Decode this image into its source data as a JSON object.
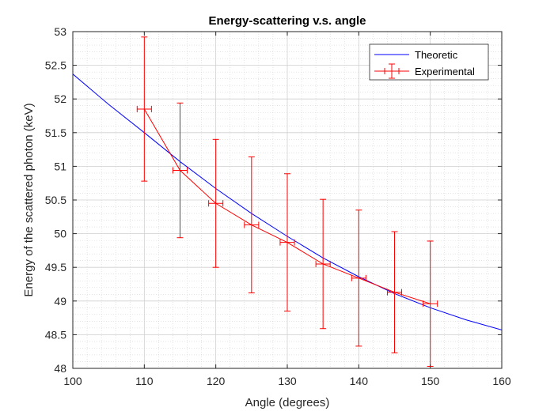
{
  "chart_data": {
    "type": "line",
    "title": "Energy-scattering v.s. angle",
    "xlabel": "Angle (degrees)",
    "ylabel": "Energy of the scattered photon (keV)",
    "xlim": [
      100,
      160
    ],
    "ylim": [
      48,
      53
    ],
    "xticks": [
      "100",
      "110",
      "120",
      "130",
      "140",
      "150",
      "160"
    ],
    "yticks": [
      "48",
      "48.5",
      "49",
      "49.5",
      "50",
      "50.5",
      "51",
      "51.5",
      "52",
      "52.5",
      "53"
    ],
    "grid": true,
    "minor_grid": true,
    "legend_position": "top-right",
    "series": [
      {
        "name": "Theoretic",
        "color": "#0000ff",
        "x": [
          100,
          105,
          110,
          115,
          120,
          125,
          130,
          135,
          140,
          145,
          150,
          155,
          160
        ],
        "y": [
          52.37,
          51.92,
          51.5,
          51.07,
          50.67,
          50.3,
          49.96,
          49.64,
          49.36,
          49.11,
          48.9,
          48.72,
          48.57
        ]
      },
      {
        "name": "Experimental",
        "color": "#ff0000",
        "x": [
          110,
          115,
          120,
          125,
          130,
          135,
          140,
          145,
          150
        ],
        "y": [
          51.85,
          50.94,
          50.45,
          50.13,
          49.87,
          49.55,
          49.34,
          49.13,
          48.96
        ],
        "yerr": [
          1.07,
          1.0,
          0.95,
          1.01,
          1.02,
          0.96,
          1.01,
          0.9,
          0.93
        ],
        "xerr": [
          1.0,
          1.0,
          1.0,
          1.0,
          1.0,
          1.0,
          1.0,
          1.0,
          1.0
        ]
      }
    ]
  }
}
